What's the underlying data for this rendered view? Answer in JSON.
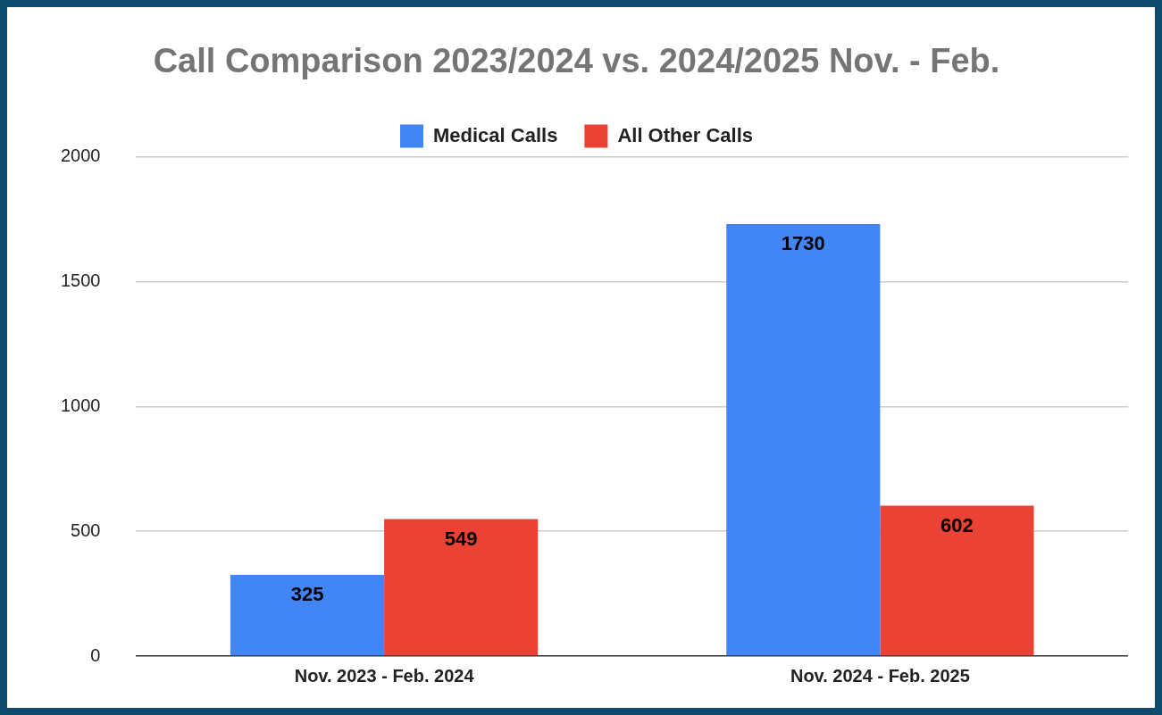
{
  "chart_data": {
    "type": "bar",
    "title": "Call Comparison 2023/2024 vs. 2024/2025 Nov. - Feb.",
    "categories": [
      "Nov. 2023 - Feb. 2024",
      "Nov. 2024 - Feb. 2025"
    ],
    "series": [
      {
        "name": "Medical Calls",
        "color": "#4285f4",
        "values": [
          325,
          1730
        ]
      },
      {
        "name": "All Other Calls",
        "color": "#ea4335",
        "values": [
          549,
          602
        ]
      }
    ],
    "ylim": [
      0,
      2000
    ],
    "yticks": [
      0,
      500,
      1000,
      1500,
      2000
    ],
    "grid": "y",
    "legend": "top",
    "data_labels": true
  }
}
